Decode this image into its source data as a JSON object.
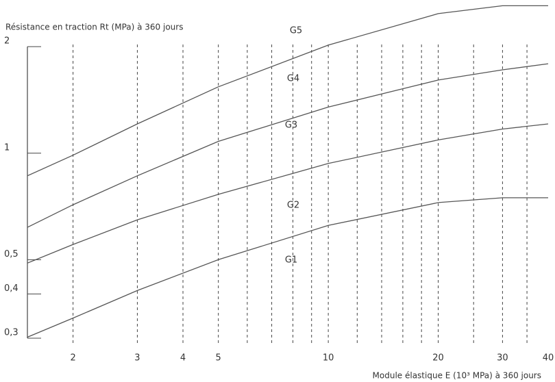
{
  "chart_data": {
    "type": "line",
    "title": "Résistance en traction Rt (MPa) à 360 jours",
    "x_label": "Module élastique E (10³ MPa) à 360 jours",
    "x": [
      1.5,
      2,
      3,
      5,
      10,
      20,
      30,
      40
    ],
    "series": [
      {
        "color": "#555555",
        "values": [
          0.863,
          0.987,
          1.21,
          1.54,
          2.02,
          2.48,
          2.61,
          2.61
        ]
      },
      {
        "color": "#555555",
        "values": [
          0.617,
          0.715,
          0.863,
          1.08,
          1.35,
          1.61,
          1.72,
          1.79
        ]
      },
      {
        "color": "#555555",
        "values": [
          0.489,
          0.552,
          0.648,
          0.765,
          0.935,
          1.09,
          1.17,
          1.21
        ]
      },
      {
        "color": "#555555",
        "values": [
          0.302,
          0.342,
          0.409,
          0.5,
          0.625,
          0.725,
          0.748,
          0.748
        ]
      }
    ],
    "annotations": [
      "G5",
      "G4",
      "G3",
      "G2",
      "G1"
    ],
    "log_x": true,
    "log_y": true,
    "xlim": [
      1.5,
      40
    ],
    "ylim": [
      0.3,
      2.65
    ],
    "xticks": [
      2,
      3,
      4,
      5,
      10,
      20,
      30,
      40
    ],
    "xgrid": [
      2,
      3,
      4,
      5,
      6,
      7,
      8,
      9,
      10,
      12,
      14,
      16,
      18,
      20,
      25,
      30,
      35
    ],
    "yticks": [
      {
        "value": 0.3,
        "label": "0,3"
      },
      {
        "value": 0.4,
        "label": "0,4"
      },
      {
        "value": 0.5,
        "label": "0,5"
      },
      1,
      2
    ]
  }
}
